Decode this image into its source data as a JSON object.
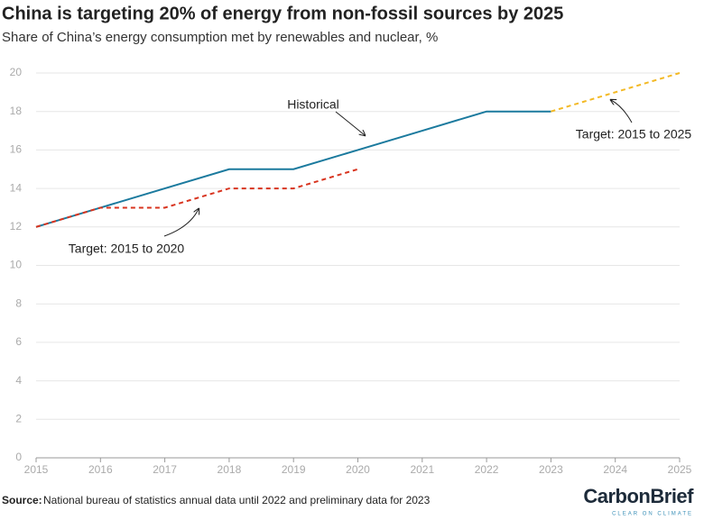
{
  "chart_data": {
    "type": "line",
    "title": "China is targeting 20% of energy from non-fossil sources by 2025",
    "subtitle": "Share of China’s energy consumption met by renewables and nuclear, %",
    "series": [
      {
        "name": "Historical",
        "color": "#1b7a9e",
        "dashed": false,
        "x": [
          2015,
          2016,
          2017,
          2018,
          2019,
          2020,
          2021,
          2022,
          2023
        ],
        "values": [
          12,
          13,
          14,
          15,
          15,
          16,
          17,
          18,
          18
        ]
      },
      {
        "name": "Target: 2015 to 2020",
        "color": "#d8341f",
        "dashed": true,
        "x": [
          2015,
          2016,
          2017,
          2018,
          2019,
          2020
        ],
        "values": [
          12,
          13,
          13,
          14,
          14,
          15
        ]
      },
      {
        "name": "Target: 2015 to 2025",
        "color": "#f3b925",
        "dashed": true,
        "x": [
          2023,
          2025
        ],
        "values": [
          18,
          20
        ]
      }
    ],
    "xlim": [
      2015,
      2025
    ],
    "xticks": [
      2015,
      2016,
      2017,
      2018,
      2019,
      2020,
      2021,
      2022,
      2023,
      2024,
      2025
    ],
    "ylim": [
      0,
      20
    ],
    "yticks": [
      0,
      2,
      4,
      6,
      8,
      10,
      12,
      14,
      16,
      18,
      20
    ],
    "grid": true,
    "source": {
      "label": "Source:",
      "text": "National bureau of statistics annual data until 2022 and preliminary data for 2023"
    },
    "logo": {
      "name": "CarbonBrief",
      "tagline": "CLEAR ON CLIMATE"
    }
  }
}
